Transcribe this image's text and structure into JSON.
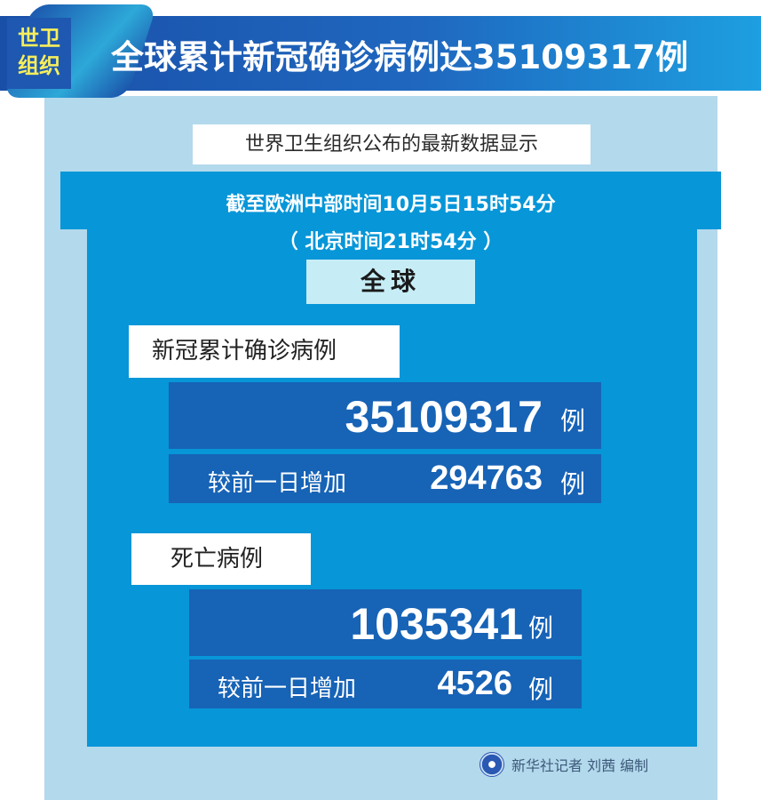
{
  "header": {
    "badge_line1": "世卫",
    "badge_line2": "组织",
    "title": "全球累计新冠确诊病例达35109317例"
  },
  "subtitle": "世界卫生组织公布的最新数据显示",
  "time": {
    "cet": "截至欧洲中部时间10月5日15时54分",
    "beijing": "（ 北京时间21时54分 ）"
  },
  "scope": "全球",
  "cases": {
    "label": "新冠累计确诊病例",
    "total": "35109317",
    "unit": "例",
    "increase_label": "较前一日增加",
    "increase": "294763"
  },
  "deaths": {
    "label": "死亡病例",
    "total": "1035341",
    "unit": "例",
    "increase_label": "较前一日增加",
    "increase": "4526"
  },
  "credit": "新华社记者 刘茜 编制",
  "colors": {
    "panel": "#b3d9ec",
    "inner": "#0796d8",
    "number_box": "#1763b6",
    "badge_text": "#f6ee5c"
  }
}
